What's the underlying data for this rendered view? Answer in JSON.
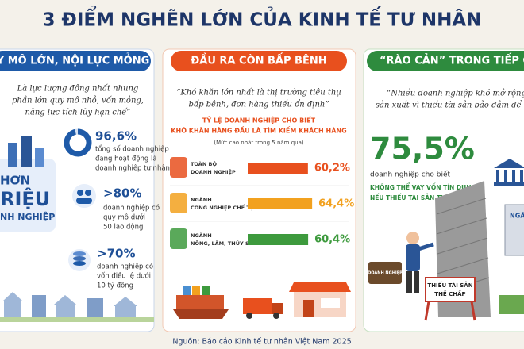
{
  "header": {
    "title": "3 ĐIỂM NGHẼN LỚN CỦA KINH TẾ TƯ NHÂN"
  },
  "left": {
    "heading": "Y MÔ LỚN, NỘI LỰC MỎNG",
    "quote": [
      "Là lực lượng đông nhất nhung",
      "phần lớn quy mô nhỏ, vốn mỏng,",
      "năng lực tích lũy hạn chế”"
    ],
    "badge": [
      "HƠN",
      "RIỆU",
      "NH NGHIỆP"
    ],
    "stats": [
      {
        "value": 96.6,
        "label": "96,6%",
        "text": [
          "tổng số doanh nghiệp",
          "đang hoạt động là",
          "doanh nghiệp tư nhân"
        ]
      },
      {
        "label": ">80%",
        "text": [
          "doanh nghiệp có",
          "quy mô dưới",
          "50 lao động"
        ]
      },
      {
        "label": ">70%",
        "text": [
          "doanh nghiệp có",
          "vốn điều lệ dưới",
          "10 tỷ đồng"
        ]
      }
    ]
  },
  "middle": {
    "heading": "ĐẦU RA CÒN BẤP BÊNH",
    "quote": [
      "“Khó khăn lớn nhất là thị trường tiêu thụ",
      "bấp bênh, đơn hàng thiếu ổn định”"
    ],
    "subtitle": [
      "TỶ LỆ DOANH NGHIỆP CHO BIẾT",
      "KHÓ KHĂN HÀNG ĐẦU LÀ TÌM KIẾM KHÁCH HÀNG"
    ],
    "note": "(Mức cao nhất trong 5 năm qua)",
    "rows": [
      {
        "label": [
          "TOÀN BỘ",
          "DOANH NGHIỆP"
        ],
        "value": 60.2,
        "value_label": "60,2%",
        "color": "#e8501e"
      },
      {
        "label": [
          "NGÀNH",
          "CÔNG NGHIỆP CHẾ TẠO"
        ],
        "value": 64.4,
        "value_label": "64,4%",
        "color": "#f2a11f"
      },
      {
        "label": [
          "NGÀNH",
          "NÔNG, LÂM, THỦY SẢN"
        ],
        "value": 60.4,
        "value_label": "60,4%",
        "color": "#3d9a3d"
      }
    ]
  },
  "right": {
    "heading": "“RÀO CẢN” TRONG TIẾP CẬN V",
    "quote": [
      "“Nhiều doanh nghiệp khó mở rộng",
      "sản xuất vì thiếu tài sản bảo đảm để vay"
    ],
    "big": "75,5%",
    "caption": "doanh nghiệp cho biết",
    "highlight": [
      "KHÔNG THỂ VAY VỐN TÍN DỤNG",
      "NẾU THIẾU TÀI SẢN THẾ CHẤP"
    ],
    "sign": [
      "THIẾU TÀI SẢN",
      "THẾ CHẤP"
    ],
    "briefcase": "DOANH NGHIỆP",
    "bank": "NGÂN"
  },
  "source": "Nguồn: Báo cáo Kinh tế tư nhân Việt Nam 2025"
}
